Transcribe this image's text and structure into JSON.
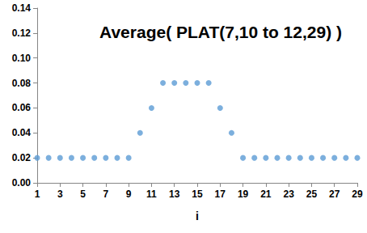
{
  "chart_data": {
    "type": "scatter",
    "title": "Average( PLAT(7,10 to 12,29) )",
    "xlabel": "i",
    "x": [
      1,
      2,
      3,
      4,
      5,
      6,
      7,
      8,
      9,
      10,
      11,
      12,
      13,
      14,
      15,
      16,
      17,
      18,
      19,
      20,
      21,
      22,
      23,
      24,
      25,
      26,
      27,
      28,
      29
    ],
    "values": [
      0.02,
      0.02,
      0.02,
      0.02,
      0.02,
      0.02,
      0.02,
      0.02,
      0.02,
      0.04,
      0.06,
      0.08,
      0.08,
      0.08,
      0.08,
      0.08,
      0.06,
      0.04,
      0.02,
      0.02,
      0.02,
      0.02,
      0.02,
      0.02,
      0.02,
      0.02,
      0.02,
      0.02,
      0.02
    ],
    "color": "#5b9bd5",
    "marker": "circle",
    "xlim": [
      1,
      29
    ],
    "xticks": [
      1,
      3,
      5,
      7,
      9,
      11,
      13,
      15,
      17,
      19,
      21,
      23,
      25,
      27,
      29
    ],
    "ylim": [
      0,
      0.14
    ],
    "yticks": [
      {
        "value": 0,
        "label": "0.00"
      },
      {
        "value": 0.02,
        "label": "0.02"
      },
      {
        "value": 0.04,
        "label": "0.04"
      },
      {
        "value": 0.06,
        "label": "0.06"
      },
      {
        "value": 0.08,
        "label": "0.08"
      },
      {
        "value": 0.1,
        "label": "0.10"
      },
      {
        "value": 0.12,
        "label": "0.12"
      },
      {
        "value": 0.14,
        "label": "0.14"
      }
    ],
    "grid": false
  }
}
